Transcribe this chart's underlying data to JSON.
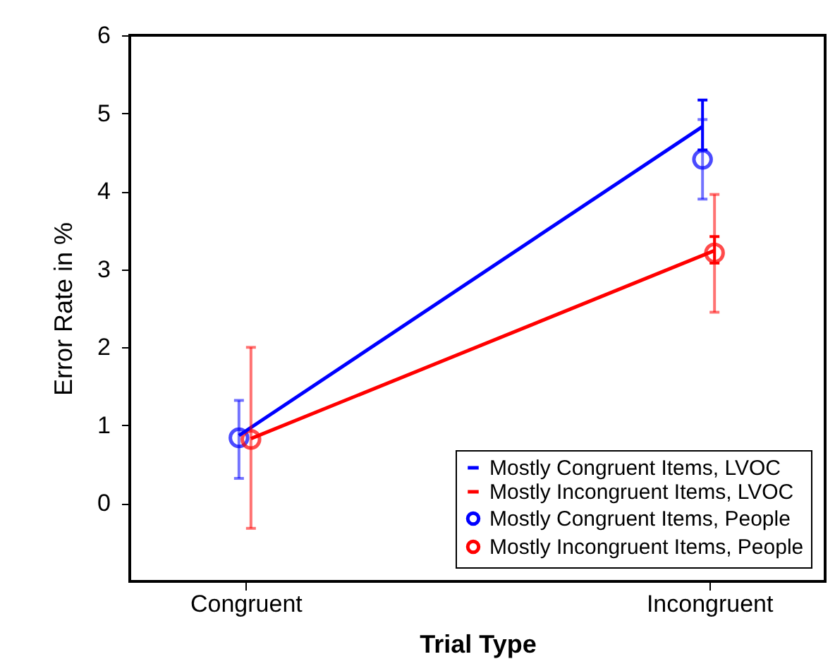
{
  "chart_data": {
    "type": "line",
    "xlabel": "Trial Type",
    "ylabel": "Error Rate in %",
    "categories": [
      "Congruent",
      "Incongruent"
    ],
    "series": [
      {
        "name": "Mostly Congruent Items, LVOC",
        "color": "#0000ff",
        "values": [
          0.87,
          4.83
        ],
        "errors": [
          null,
          [
            4.53,
            5.17
          ]
        ]
      },
      {
        "name": "Mostly Incongruent Items, LVOC",
        "color": "#ff0000",
        "values": [
          0.83,
          3.24
        ],
        "errors": [
          null,
          [
            3.08,
            3.42
          ]
        ]
      },
      {
        "name": "Mostly Congruent Items, People",
        "type": "scatter",
        "marker": "circle",
        "color": "#0000ff",
        "values": [
          0.84,
          4.41
        ],
        "errors": [
          [
            0.32,
            1.32
          ],
          [
            3.9,
            4.92
          ]
        ]
      },
      {
        "name": "Mostly Incongruent Items, People",
        "type": "scatter",
        "marker": "circle",
        "color": "#ff0000",
        "values": [
          0.82,
          3.21
        ],
        "errors": [
          [
            -0.32,
            2.0
          ],
          [
            2.45,
            3.96
          ]
        ]
      }
    ],
    "ylim": [
      -1,
      6
    ],
    "yticks": [
      0,
      1,
      2,
      3,
      4,
      5,
      6
    ],
    "grid": false,
    "legend": "bottom right"
  }
}
